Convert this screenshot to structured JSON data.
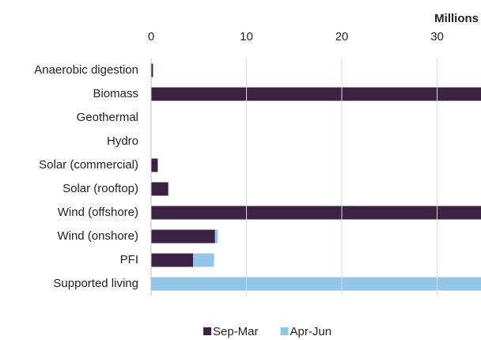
{
  "chart_data": {
    "type": "stacked_barh",
    "xlabel": "Millions",
    "categories": [
      "Anaerobic digestion",
      "Biomass",
      "Geothermal",
      "Hydro",
      "Solar (commercial)",
      "Solar (rooftop)",
      "Wind (offshore)",
      "Wind (onshore)",
      "PFI",
      "Supported living"
    ],
    "series": [
      {
        "name": "Sep-Mar",
        "color": "#3b2242",
        "values": [
          0.2,
          36,
          0,
          0,
          0.7,
          1.8,
          36,
          6.7,
          4.4,
          0
        ]
      },
      {
        "name": "Apr-Jun",
        "color": "#92c5e6",
        "values": [
          0,
          0,
          0,
          0,
          0,
          0,
          0,
          0.3,
          2.2,
          36
        ]
      }
    ],
    "xlim": [
      0,
      34.6
    ],
    "xticks": [
      0,
      10,
      20,
      30
    ],
    "grid": true,
    "legend": "bottom"
  }
}
